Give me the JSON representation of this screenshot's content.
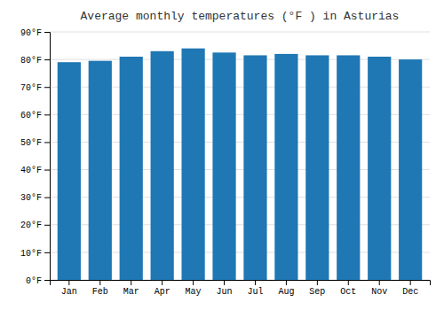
{
  "chart_data": {
    "type": "bar",
    "title": "Average monthly temperatures (°F ) in Asturias",
    "categories": [
      "Jan",
      "Feb",
      "Mar",
      "Apr",
      "May",
      "Jun",
      "Jul",
      "Aug",
      "Sep",
      "Oct",
      "Nov",
      "Dec"
    ],
    "values": [
      79.0,
      79.5,
      81.0,
      83.0,
      84.0,
      82.5,
      81.5,
      82.0,
      81.5,
      81.5,
      81.0,
      80.0
    ],
    "ylim": [
      0,
      90
    ],
    "yticks": [
      {
        "value": 0,
        "label": "0°F"
      },
      {
        "value": 10,
        "label": "10°F"
      },
      {
        "value": 20,
        "label": "20°F"
      },
      {
        "value": 30,
        "label": "30°F"
      },
      {
        "value": 40,
        "label": "40°F"
      },
      {
        "value": 50,
        "label": "50°F"
      },
      {
        "value": 60,
        "label": "60°F"
      },
      {
        "value": 70,
        "label": "70°F"
      },
      {
        "value": 80,
        "label": "80°F"
      },
      {
        "value": 90,
        "label": "90°F"
      }
    ],
    "grid": true
  }
}
